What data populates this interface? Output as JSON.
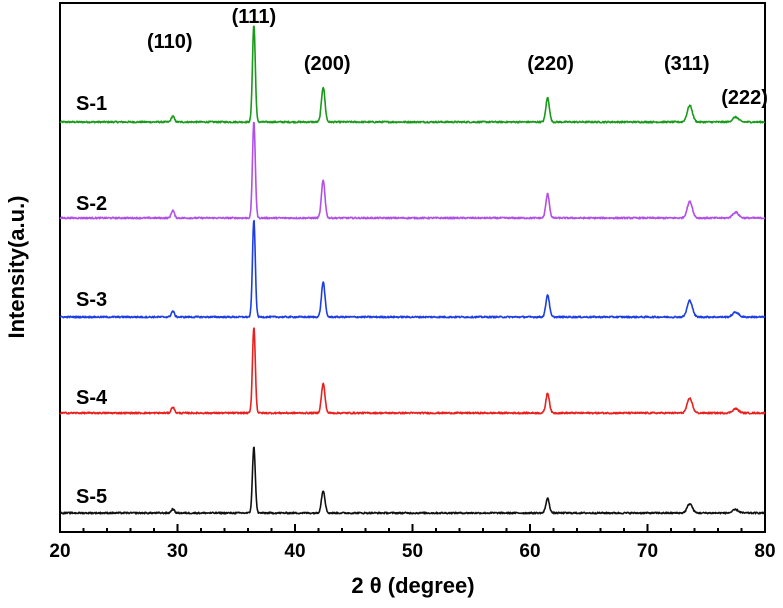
{
  "chart_data": {
    "type": "line",
    "title": "",
    "xlabel": "2 θ (degree)",
    "ylabel": "Intensity(a.u.)",
    "xlim": [
      20,
      80
    ],
    "xticks": [
      20,
      30,
      40,
      50,
      60,
      70,
      80
    ],
    "yticks": [],
    "grid": false,
    "legend": "none",
    "peak_labels": [
      {
        "text": "(110)",
        "x": 29.6
      },
      {
        "text": "(111)",
        "x": 36.5
      },
      {
        "text": "(200)",
        "x": 42.4
      },
      {
        "text": "(220)",
        "x": 61.5
      },
      {
        "text": "(311)",
        "x": 73.6
      },
      {
        "text": "(222)",
        "x": 77.5
      }
    ],
    "peaks": [
      {
        "hkl": "(110)",
        "two_theta": 29.6
      },
      {
        "hkl": "(111)",
        "two_theta": 36.5
      },
      {
        "hkl": "(200)",
        "two_theta": 42.4
      },
      {
        "hkl": "(220)",
        "two_theta": 61.5
      },
      {
        "hkl": "(311)",
        "two_theta": 73.6
      },
      {
        "hkl": "(222)",
        "two_theta": 77.5
      }
    ],
    "series": [
      {
        "name": "S-1",
        "color": "#1a9a1a",
        "relative_intensities": [
          0.06,
          1.0,
          0.36,
          0.25,
          0.17,
          0.05
        ]
      },
      {
        "name": "S-2",
        "color": "#b150e8",
        "relative_intensities": [
          0.08,
          1.0,
          0.39,
          0.25,
          0.17,
          0.06
        ]
      },
      {
        "name": "S-3",
        "color": "#1e3fe0",
        "relative_intensities": [
          0.06,
          1.0,
          0.36,
          0.23,
          0.17,
          0.05
        ]
      },
      {
        "name": "S-4",
        "color": "#e8201e",
        "relative_intensities": [
          0.07,
          1.0,
          0.34,
          0.23,
          0.17,
          0.05
        ]
      },
      {
        "name": "S-5",
        "color": "#111111",
        "relative_intensities": [
          0.06,
          1.0,
          0.34,
          0.22,
          0.14,
          0.05
        ]
      }
    ]
  }
}
